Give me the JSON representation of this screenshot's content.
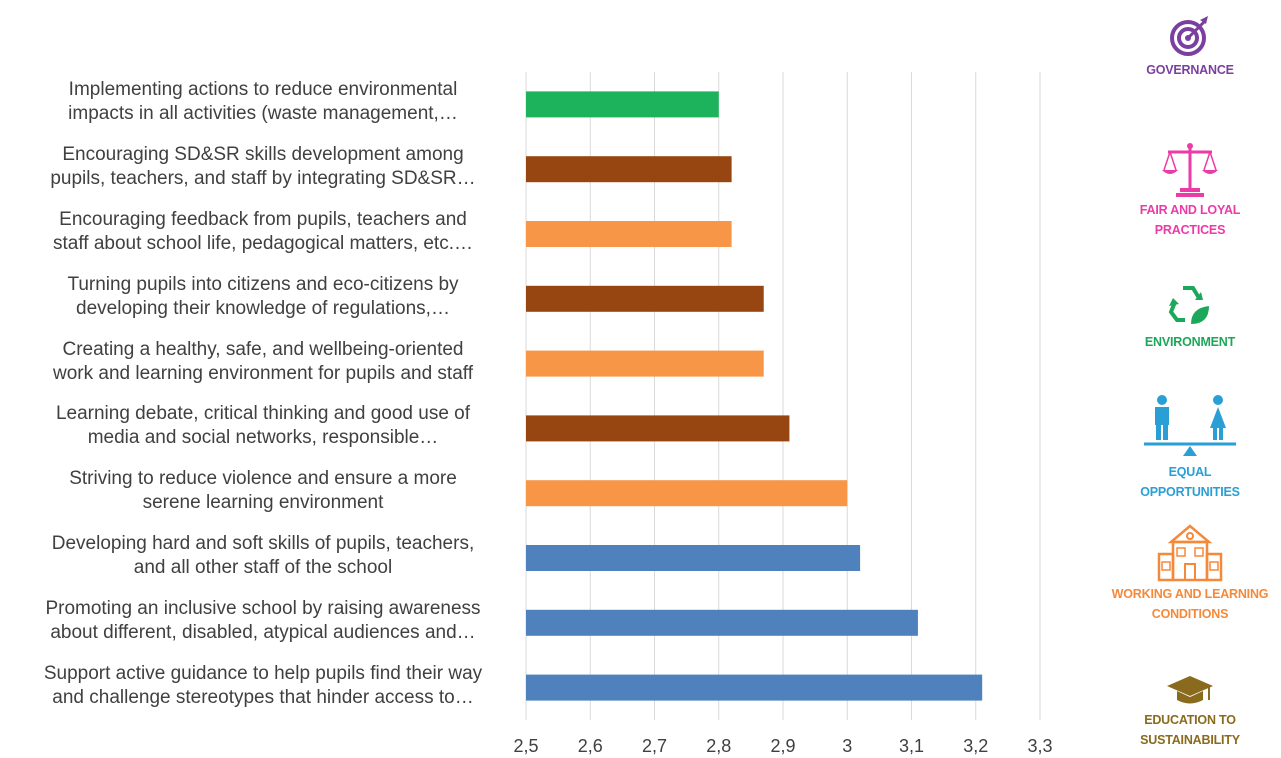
{
  "chart_data": {
    "type": "bar",
    "orientation": "horizontal",
    "xlim": [
      2.5,
      3.3
    ],
    "x_ticks": [
      "2,5",
      "2,6",
      "2,7",
      "2,8",
      "2,9",
      "3",
      "3,1",
      "3,2",
      "3,3"
    ],
    "grid": "vertical",
    "categories": [
      [
        "Implementing actions to reduce environmental",
        "impacts in all activities (waste management,…"
      ],
      [
        "Encouraging SD&SR skills development among",
        "pupils, teachers, and staff by integrating SD&SR…"
      ],
      [
        "Encouraging feedback from pupils, teachers and",
        "staff about school life, pedagogical matters, etc.…"
      ],
      [
        "Turning pupils into citizens and eco-citizens by",
        "developing their knowledge of regulations,…"
      ],
      [
        "Creating a healthy, safe, and wellbeing-oriented",
        "work and learning environment for pupils and staff"
      ],
      [
        "Learning debate, critical thinking and good use of",
        "media and social networks, responsible…"
      ],
      [
        "Striving to reduce violence and ensure a more",
        "serene learning environment"
      ],
      [
        "Developing hard and soft skills of pupils, teachers,",
        "and all other staff of the school"
      ],
      [
        "Promoting an inclusive school by raising awareness",
        "about different, disabled, atypical audiences and…"
      ],
      [
        "Support active guidance to help pupils find their way",
        "and challenge stereotypes that hinder access to…"
      ]
    ],
    "values": [
      2.8,
      2.82,
      2.82,
      2.87,
      2.87,
      2.91,
      3.0,
      3.02,
      3.11,
      3.21
    ],
    "bar_colors": [
      "#1db35c",
      "#974611",
      "#f79646",
      "#974611",
      "#f79646",
      "#974611",
      "#f79646",
      "#4f81bd",
      "#4f81bd",
      "#4f81bd"
    ]
  },
  "legend": [
    {
      "icon": "target-icon",
      "label": [
        "GOVERNANCE"
      ],
      "color": "#7b3fa0"
    },
    {
      "icon": "scales-icon",
      "label": [
        "FAIR AND LOYAL",
        "PRACTICES"
      ],
      "color": "#ec3aa7"
    },
    {
      "icon": "recycle-leaf-icon",
      "label": [
        "ENVIRONMENT"
      ],
      "color": "#1ca85a"
    },
    {
      "icon": "equality-figures-icon",
      "label": [
        "EQUAL",
        "OPPORTUNITIES"
      ],
      "color": "#2a9fd6"
    },
    {
      "icon": "school-building-icon",
      "label": [
        "WORKING AND LEARNING",
        "CONDITIONS"
      ],
      "color": "#f5893a"
    },
    {
      "icon": "graduation-cap-icon",
      "label": [
        "EDUCATION TO",
        "SUSTAINABILITY"
      ],
      "color": "#8a6a1c"
    }
  ]
}
